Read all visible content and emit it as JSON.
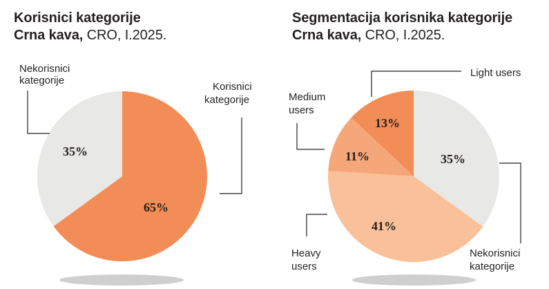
{
  "colors": {
    "non_users": "#e8e8e6",
    "users": "#f28d57",
    "heavy": "#f9c09a",
    "medium": "#f6a779",
    "light": "#f28d57",
    "shadow": "#cfcfcf"
  },
  "chart_data": [
    {
      "type": "pie",
      "title_bold": "Korisnici kategorije",
      "subtitle_bold": "Crna kava,",
      "subtitle_regular": "CRO, I.2025.",
      "slices": [
        {
          "label": "Korisnici kategorije",
          "value": 65,
          "value_label": "65%"
        },
        {
          "label": "Nekorisnici kategorije",
          "value": 35,
          "value_label": "35%"
        }
      ],
      "labels": {
        "users_1": "Korisnici",
        "users_2": "kategorije",
        "non_users_1": "Nekorisnici",
        "non_users_2": "kategorije"
      }
    },
    {
      "type": "pie",
      "title_bold": "Segmentacija korisnika kategorije",
      "subtitle_bold": "Crna kava,",
      "subtitle_regular": "CRO, I.2025.",
      "slices": [
        {
          "label": "Nekorisnici kategorije",
          "value": 35,
          "value_label": "35%"
        },
        {
          "label": "Heavy users",
          "value": 41,
          "value_label": "41%"
        },
        {
          "label": "Medium users",
          "value": 11,
          "value_label": "11%"
        },
        {
          "label": "Light users",
          "value": 13,
          "value_label": "13%"
        }
      ],
      "labels": {
        "light": "Light users",
        "medium_1": "Medium",
        "medium_2": "users",
        "heavy_1": "Heavy",
        "heavy_2": "users",
        "non_users_1": "Nekorisnici",
        "non_users_2": "kategorije"
      }
    }
  ]
}
